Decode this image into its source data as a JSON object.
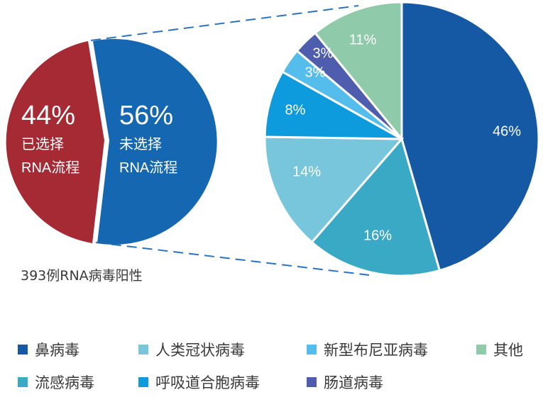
{
  "chart_data": [
    {
      "type": "pie",
      "title": "393例RNA病毒阳性",
      "categories": [
        "已选择RNA流程",
        "未选择RNA流程"
      ],
      "values": [
        44,
        56
      ],
      "labels": [
        {
          "pct": "44%",
          "line1": "已选择",
          "line2": "RNA流程"
        },
        {
          "pct": "56%",
          "line1": "未选择",
          "line2": "RNA流程"
        }
      ],
      "colors": [
        "#A52A33",
        "#1467B0"
      ]
    },
    {
      "type": "pie",
      "title": "",
      "categories": [
        "鼻病毒",
        "流感病毒",
        "人类冠状病毒",
        "呼吸道合胞病毒",
        "新型布尼亚病毒",
        "肠道病毒",
        "其他"
      ],
      "values": [
        46,
        16,
        14,
        8,
        3,
        3,
        11
      ],
      "labels": [
        "46%",
        "16%",
        "14%",
        "8%",
        "3%",
        "3%",
        "11%"
      ],
      "colors": [
        "#1559A5",
        "#3AA9C6",
        "#77C6DB",
        "#0E9BDD",
        "#55BDEB",
        "#4F5DAE",
        "#8FCBAA"
      ],
      "legend_position": "bottom"
    }
  ],
  "caption": "393例RNA病毒阳性",
  "legend": [
    {
      "label": "鼻病毒",
      "color": "#1559A5"
    },
    {
      "label": "人类冠状病毒",
      "color": "#77C6DB"
    },
    {
      "label": "新型布尼亚病毒",
      "color": "#55BDEB"
    },
    {
      "label": "其他",
      "color": "#8FCBAA"
    },
    {
      "label": "流感病毒",
      "color": "#3AA9C6"
    },
    {
      "label": "呼吸道合胞病毒",
      "color": "#0E9BDD"
    },
    {
      "label": "肠道病毒",
      "color": "#4F5DAE"
    }
  ]
}
